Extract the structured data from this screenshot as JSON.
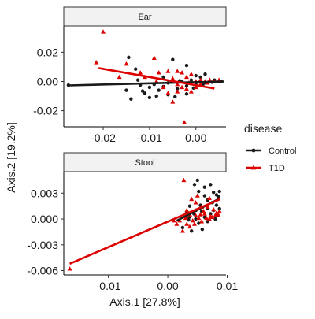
{
  "chart_data": {
    "type": "scatter",
    "xlabel": "Axis.1   [27.8%]",
    "ylabel": "Axis.2   [19.2%]",
    "legend": {
      "title": "disease",
      "position": "right",
      "entries": [
        {
          "name": "Control",
          "color": "#1a1a1a",
          "marker": "circle"
        },
        {
          "name": "T1D",
          "color": "#dd0000",
          "marker": "triangle"
        }
      ]
    },
    "grid": false,
    "facet_scales": "free",
    "panels": [
      {
        "strip": "Ear",
        "xlim": [
          -0.0285,
          0.0065
        ],
        "ylim": [
          -0.031,
          0.038
        ],
        "xticks": [
          -0.02,
          -0.01,
          0.0
        ],
        "xtick_labels": [
          "-0.02",
          "-0.01",
          "0.00"
        ],
        "yticks": [
          -0.02,
          0.0,
          0.02
        ],
        "ytick_labels": [
          "-0.02",
          "0.00",
          "0.02"
        ],
        "series": [
          {
            "name": "Control",
            "color": "#1a1a1a",
            "marker": "circle",
            "fit": [
              [
                -0.0275,
                -0.0027
              ],
              [
                0.006,
                0.0
              ]
            ],
            "points": [
              [
                -0.0275,
                -0.0025
              ],
              [
                -0.0145,
                0.0165
              ],
              [
                -0.013,
                0.0085
              ],
              [
                -0.0125,
                0.001
              ],
              [
                -0.012,
                -0.0025
              ],
              [
                -0.01,
                -0.004
              ],
              [
                -0.007,
                -0.0035
              ],
              [
                -0.005,
                0.015
              ],
              [
                -0.002,
                0.011
              ],
              [
                0.001,
                0.003
              ],
              [
                0.002,
                0.005
              ],
              [
                -0.015,
                -0.006
              ],
              [
                -0.014,
                -0.012
              ],
              [
                -0.011,
                -0.008
              ],
              [
                -0.01,
                -0.011
              ],
              [
                -0.008,
                -0.006
              ],
              [
                -0.006,
                -0.009
              ],
              [
                -0.004,
                -0.005
              ],
              [
                -0.003,
                0.0
              ],
              [
                -0.002,
                -0.003
              ],
              [
                -0.001,
                0.001
              ],
              [
                0.0,
                -0.002
              ],
              [
                0.001,
                0.0
              ],
              [
                0.002,
                -0.001
              ],
              [
                0.003,
                0.0
              ],
              [
                0.004,
                0.001
              ],
              [
                0.005,
                0.0
              ],
              [
                0.0055,
                0.0
              ],
              [
                -0.009,
                -0.002
              ],
              [
                -0.006,
                -0.001
              ],
              [
                -0.0115,
                -0.0065
              ],
              [
                -0.0085,
                -0.01
              ],
              [
                -0.0045,
                -0.0105
              ],
              [
                -0.002,
                -0.0085
              ],
              [
                -0.0005,
                -0.0045
              ],
              [
                0.0,
                0.004
              ],
              [
                -0.007,
                0.003
              ],
              [
                -0.0035,
                0.0005
              ],
              [
                0.0015,
                -0.0025
              ],
              [
                0.0035,
                -0.0005
              ]
            ]
          },
          {
            "name": "T1D",
            "color": "#dd0000",
            "marker": "triangle",
            "fit": [
              [
                -0.021,
                0.0092
              ],
              [
                0.004,
                -0.0048
              ]
            ],
            "points": [
              [
                -0.02,
                0.034
              ],
              [
                -0.0215,
                0.013
              ],
              [
                -0.0165,
                0.003
              ],
              [
                -0.015,
                0.012
              ],
              [
                -0.012,
                0.006
              ],
              [
                -0.011,
                0.003
              ],
              [
                -0.009,
                0.016
              ],
              [
                -0.008,
                0.006
              ],
              [
                -0.006,
                0.007
              ],
              [
                -0.005,
                0.002
              ],
              [
                -0.004,
                0.007
              ],
              [
                -0.003,
                0.006
              ],
              [
                -0.002,
                0.003
              ],
              [
                -0.001,
                0.005
              ],
              [
                -0.007,
                -0.004
              ],
              [
                -0.006,
                -0.008
              ],
              [
                -0.004,
                -0.007
              ],
              [
                -0.003,
                -0.004
              ],
              [
                -0.002,
                -0.005
              ],
              [
                -0.001,
                -0.007
              ],
              [
                0.0,
                -0.004
              ],
              [
                0.001,
                -0.002
              ],
              [
                0.002,
                0.0
              ],
              [
                0.003,
                0.001
              ],
              [
                0.004,
                0.0
              ],
              [
                0.005,
                0.001
              ],
              [
                -0.005,
                -0.014
              ],
              [
                -0.0025,
                -0.028
              ],
              [
                0.0,
                0.0
              ],
              [
                0.001,
                0.001
              ],
              [
                -0.004,
                -0.002
              ],
              [
                -0.0015,
                -0.001
              ],
              [
                0.0025,
                -0.001
              ],
              [
                -0.0085,
                0.0
              ]
            ]
          }
        ]
      },
      {
        "strip": "Stool",
        "xlim": [
          -0.0175,
          0.0098
        ],
        "ylim": [
          -0.0065,
          0.0055
        ],
        "xticks": [
          -0.01,
          0.0,
          0.01
        ],
        "xtick_labels": [
          "-0.01",
          "0.00",
          "0.01"
        ],
        "yticks": [
          -0.006,
          -0.003,
          0.0,
          0.003
        ],
        "ytick_labels": [
          "-0.006",
          "-0.003",
          "0.000",
          "0.003"
        ],
        "series": [
          {
            "name": "Control",
            "color": "#1a1a1a",
            "marker": "circle",
            "fit": [
              [
                0.0015,
                -0.0002
              ],
              [
                0.0088,
                0.0024
              ]
            ],
            "points": [
              [
                0.005,
                0.0045
              ],
              [
                0.0045,
                0.004
              ],
              [
                0.0062,
                0.0037
              ],
              [
                0.0072,
                0.004
              ],
              [
                0.0052,
                0.0032
              ],
              [
                0.0062,
                0.0027
              ],
              [
                0.0077,
                0.0031
              ],
              [
                0.0082,
                0.0028
              ],
              [
                0.0087,
                0.0032
              ],
              [
                0.0085,
                0.0026
              ],
              [
                0.0067,
                0.0022
              ],
              [
                0.0075,
                0.0019
              ],
              [
                0.0082,
                0.0016
              ],
              [
                0.0055,
                0.0016
              ],
              [
                0.0037,
                0.0015
              ],
              [
                0.0032,
                0.0008
              ],
              [
                0.0047,
                0.001
              ],
              [
                0.0057,
                0.0009
              ],
              [
                0.0067,
                0.0012
              ],
              [
                0.0077,
                0.001
              ],
              [
                0.0087,
                0.0012
              ],
              [
                0.0072,
                0.0006
              ],
              [
                0.0062,
                0.0002
              ],
              [
                0.0047,
                0.0
              ],
              [
                0.0035,
                -0.0001
              ],
              [
                0.0052,
                -0.0005
              ],
              [
                0.0067,
                -0.0003
              ],
              [
                0.008,
                0.0
              ],
              [
                0.0025,
                -0.001
              ],
              [
                0.004,
                -0.0014
              ],
              [
                0.0058,
                -0.0012
              ],
              [
                0.0036,
                0.0002
              ],
              [
                0.0044,
                0.0006
              ],
              [
                0.0084,
                0.0004
              ]
            ]
          },
          {
            "name": "T1D",
            "color": "#dd0000",
            "marker": "triangle",
            "fit": [
              [
                -0.0165,
                -0.0052
              ],
              [
                0.0088,
                0.0023
              ]
            ],
            "points": [
              [
                -0.0165,
                -0.0058
              ],
              [
                0.0027,
                0.0045
              ],
              [
                0.005,
                0.0027
              ],
              [
                0.007,
                0.0024
              ],
              [
                0.004,
                0.0023
              ],
              [
                0.0047,
                0.0019
              ],
              [
                0.0057,
                0.0014
              ],
              [
                0.0067,
                0.0014
              ],
              [
                0.0077,
                0.0011
              ],
              [
                0.0082,
                0.0007
              ],
              [
                0.0087,
                0.0009
              ],
              [
                0.0032,
                0.001
              ],
              [
                0.0037,
                0.0005
              ],
              [
                0.0047,
                0.0004
              ],
              [
                0.0055,
                0.0005
              ],
              [
                0.0062,
                0.0006
              ],
              [
                0.0072,
                0.0003
              ],
              [
                0.008,
                0.0004
              ],
              [
                0.0085,
                0.0005
              ],
              [
                0.003,
                0.0001
              ],
              [
                0.0042,
                -0.0002
              ],
              [
                0.0052,
                0.0001
              ],
              [
                0.0065,
                0.0001
              ],
              [
                0.0075,
                0.0002
              ],
              [
                0.002,
                -0.0002
              ],
              [
                0.0032,
                -0.0006
              ],
              [
                0.0045,
                -0.0006
              ],
              [
                0.0057,
                -0.0003
              ],
              [
                0.0015,
                -0.0006
              ],
              [
                0.0025,
                -0.0014
              ],
              [
                0.0037,
                -0.0009
              ],
              [
                0.007,
                0.0
              ],
              [
                0.006,
                0.0009
              ],
              [
                0.001,
                -0.0002
              ]
            ]
          }
        ]
      }
    ]
  }
}
